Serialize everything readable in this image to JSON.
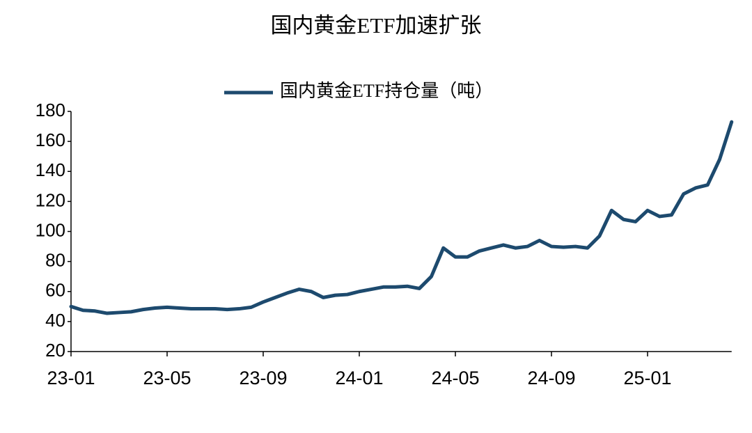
{
  "chart_data": {
    "type": "line",
    "title": "国内黄金ETF加速扩张",
    "categories": [
      "23-01",
      null,
      null,
      null,
      null,
      null,
      null,
      null,
      "23-05",
      null,
      null,
      null,
      null,
      null,
      null,
      null,
      "23-09",
      null,
      null,
      null,
      null,
      null,
      null,
      null,
      "24-01",
      null,
      null,
      null,
      null,
      null,
      null,
      null,
      "24-05",
      null,
      null,
      null,
      null,
      null,
      null,
      null,
      "24-09",
      null,
      null,
      null,
      null,
      null,
      null,
      null,
      "25-01",
      null,
      null,
      null,
      null,
      null,
      null,
      null
    ],
    "series": [
      {
        "name": "国内黄金ETF持仓量（吨）",
        "color": "#1d4a6e",
        "values": [
          50,
          47.5,
          47,
          45.5,
          46,
          46.5,
          48,
          49,
          49.5,
          49,
          48.5,
          48.5,
          48.5,
          48,
          48.5,
          49.5,
          53,
          56,
          59,
          61.5,
          60,
          56,
          57.5,
          58,
          60,
          61.5,
          63,
          63,
          63.5,
          62,
          70,
          89,
          83,
          83,
          87,
          89,
          91,
          89,
          90,
          94,
          90,
          89.5,
          90,
          89,
          97,
          114,
          108,
          106.5,
          114,
          110,
          111,
          125,
          129,
          131,
          148,
          173
        ]
      }
    ],
    "ylim": [
      20,
      180
    ],
    "yticks": [
      20,
      40,
      60,
      80,
      100,
      120,
      140,
      160,
      180
    ],
    "grid": false,
    "legend": "top"
  }
}
